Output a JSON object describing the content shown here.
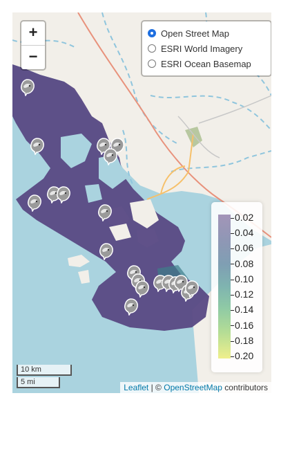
{
  "zoom": {
    "in_label": "+",
    "out_label": "−"
  },
  "layers": [
    {
      "label": "Open Street Map",
      "checked": true
    },
    {
      "label": "ESRI World Imagery",
      "checked": false
    },
    {
      "label": "ESRI Ocean Basemap",
      "checked": false
    }
  ],
  "legend": {
    "ticks": [
      "0.02",
      "0.04",
      "0.06",
      "0.08",
      "0.10",
      "0.12",
      "0.14",
      "0.16",
      "0.18",
      "0.20"
    ],
    "color_low": "#a395b8",
    "color_high": "#efef8c"
  },
  "scale": {
    "km": "10 km",
    "mi": "5 mi"
  },
  "attribution": {
    "leaflet": "Leaflet",
    "sep": "| ©",
    "osm": "OpenStreetMap",
    "suffix": "contributors"
  },
  "colors": {
    "water": "#aad3df",
    "land": "#f2efe9",
    "heat": "#5a4a84",
    "road": "#e8927c"
  },
  "marker_icon": "whale-icon"
}
